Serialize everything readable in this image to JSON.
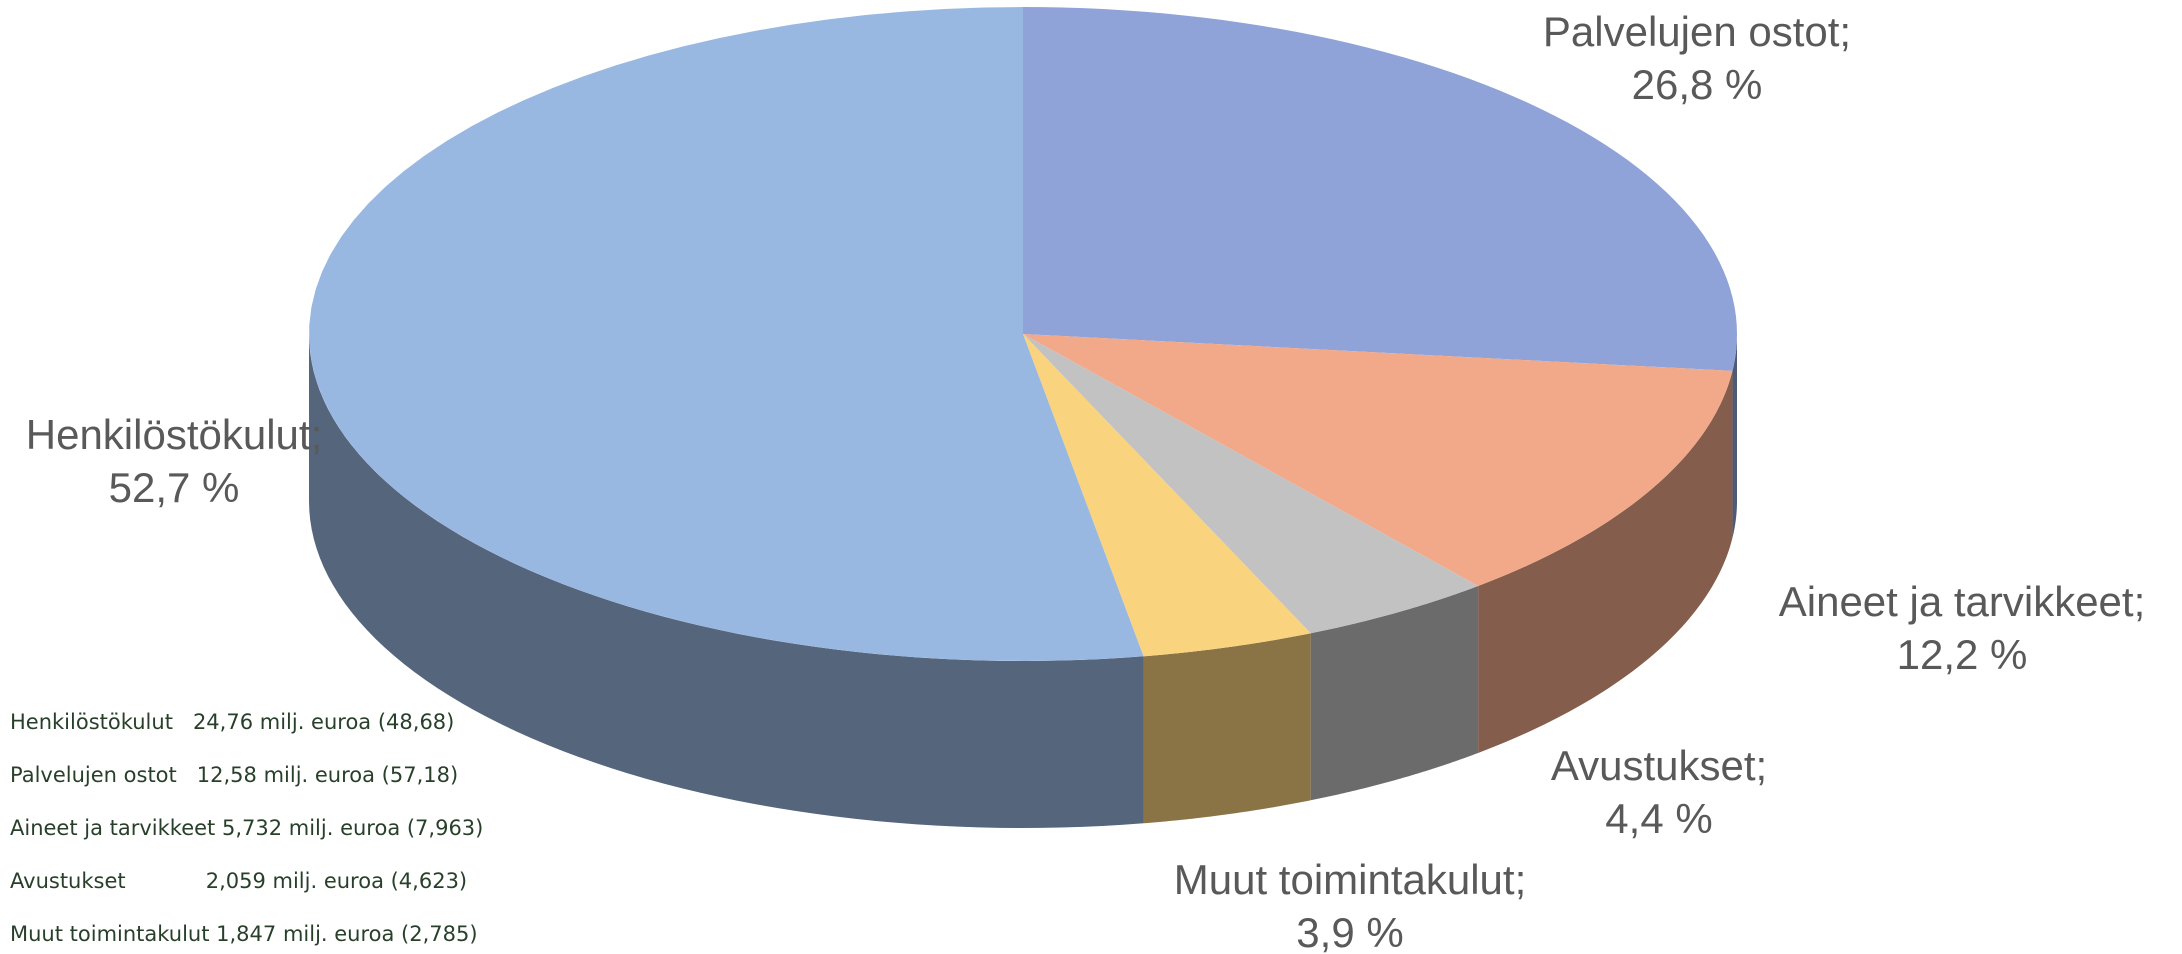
{
  "chart_data": {
    "type": "pie3d",
    "categories": [
      "Palvelujen ostot;",
      "Aineet ja tarvikkeet;",
      "Avustukset;",
      "Muut toimintakulut;",
      "Henkilöstökulut;"
    ],
    "values": [
      26.8,
      12.2,
      4.4,
      3.9,
      52.7
    ],
    "value_labels": [
      "26,8  %",
      "12,2  %",
      "4,4  %",
      "3,9  %",
      "52,7  %"
    ],
    "colors": [
      "#8fa3d8",
      "#f2a98a",
      "#c2c2c2",
      "#fad37e",
      "#98b8e2"
    ],
    "notes": [
      "Henkilöstökulut   24,76 milj. euroa (48,68)",
      "Palvelujen ostot   12,58 milj. euroa (57,18)",
      "Aineet ja tarvikkeet 5,732 milj. euroa (7,963)",
      "Avustukset            2,059 milj. euroa (4,623)",
      "Muut toimintakulut 1,847 milj. euroa (2,785)"
    ]
  }
}
